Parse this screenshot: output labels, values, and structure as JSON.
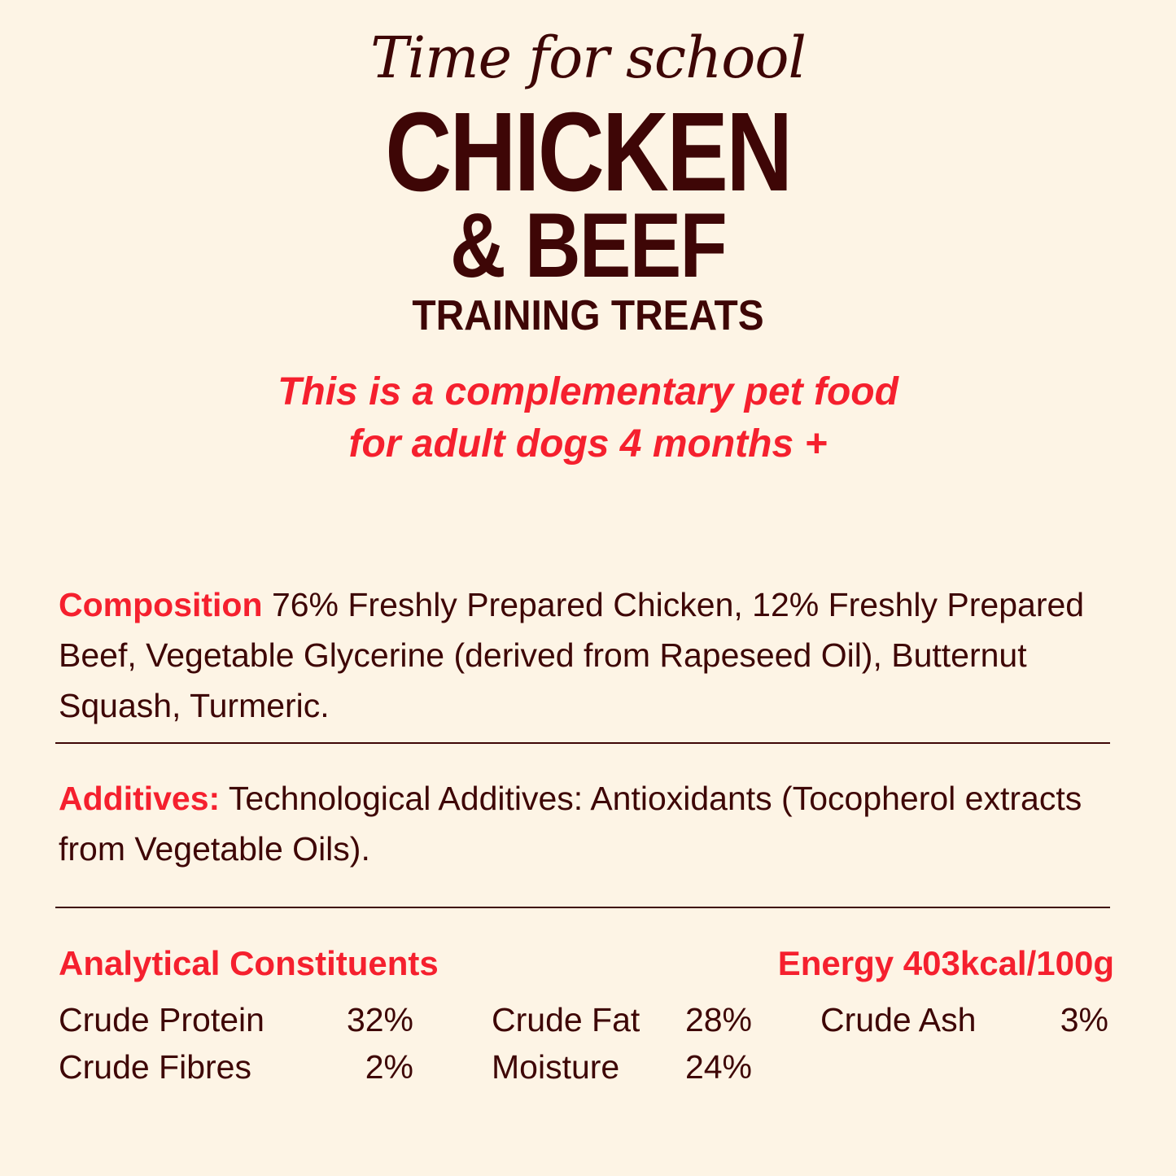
{
  "header": {
    "script_title": "Time for school",
    "title_line1": "CHICKEN",
    "title_line2": "& BEEF",
    "subtitle": "TRAINING TREATS",
    "claim_line1": "This is a complementary pet food",
    "claim_line2": "for adult dogs 4 months +"
  },
  "composition": {
    "label": "Composition",
    "text": "76% Freshly Prepared Chicken, 12% Freshly Prepared Beef, Vegetable Glycerine (derived from Rapeseed Oil), Butternut Squash, Turmeric."
  },
  "additives": {
    "label": "Additives:",
    "text": "Technological Additives: Antioxidants (Tocopherol extracts from Vegetable Oils)."
  },
  "analytical": {
    "label": "Analytical Constituents",
    "energy": "Energy 403kcal/100g",
    "items": [
      {
        "name": "Crude Protein",
        "value": "32%"
      },
      {
        "name": "Crude Fat",
        "value": "28%"
      },
      {
        "name": "Crude Ash",
        "value": "3%"
      },
      {
        "name": "Crude Fibres",
        "value": "2%"
      },
      {
        "name": "Moisture",
        "value": "24%"
      }
    ]
  },
  "colors": {
    "background": "#fdf4e5",
    "text": "#3e0606",
    "accent": "#f5202e"
  }
}
